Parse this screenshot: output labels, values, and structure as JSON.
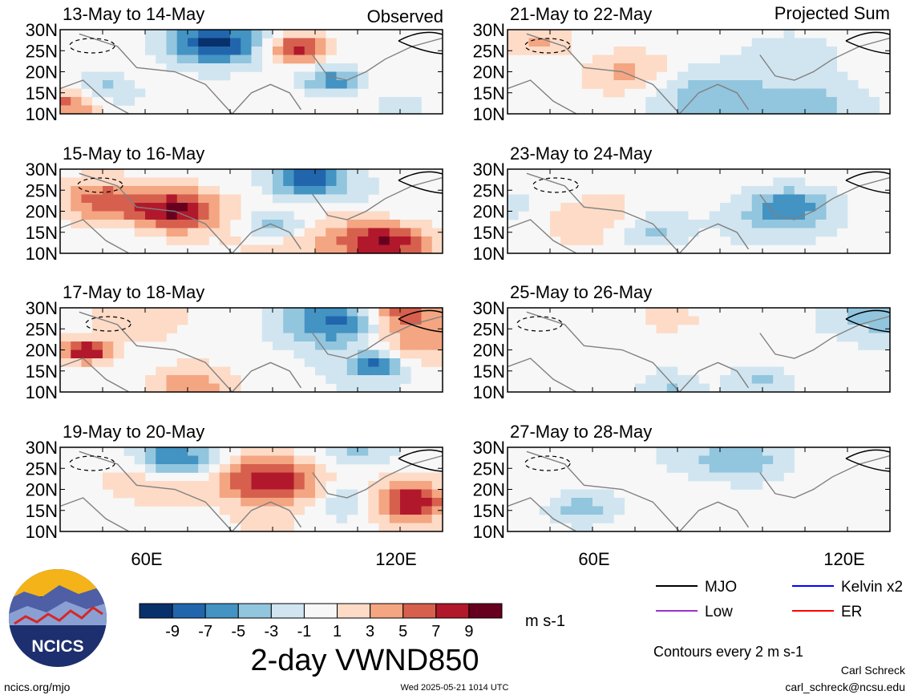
{
  "chart_data": {
    "type": "heatmap",
    "title": "2-day VWND850",
    "units": "m s-1",
    "lat_ticks": [
      "30N",
      "25N",
      "20N",
      "15N",
      "10N"
    ],
    "lon_ticks": [
      "60E",
      "120E"
    ],
    "lat_range": [
      10,
      30
    ],
    "lon_range": [
      40,
      130
    ],
    "column_labels": [
      "Observed",
      "Projected Sum"
    ],
    "colorbar": {
      "ticks": [
        "-9",
        "-7",
        "-5",
        "-3",
        "-1",
        "1",
        "3",
        "5",
        "7",
        "9"
      ],
      "levels": [
        -9,
        -7,
        -5,
        -3,
        -1,
        1,
        3,
        5,
        7,
        9
      ],
      "colors": [
        "#08306b",
        "#2166ac",
        "#4393c3",
        "#92c5de",
        "#d1e5f0",
        "#f7f7f7",
        "#fddbc7",
        "#f4a582",
        "#d6604d",
        "#b2182b",
        "#67001f"
      ]
    },
    "contour_note": "Contours every 2 m s-1",
    "legend": [
      {
        "label": "MJO",
        "color": "#000000"
      },
      {
        "label": "Kelvin x2",
        "color": "#0000ff"
      },
      {
        "label": "Low",
        "color": "#9933cc"
      },
      {
        "label": "ER",
        "color": "#ff0000"
      }
    ],
    "panels": [
      {
        "label": "13-May to 14-May"
      },
      {
        "label": "15-May to 16-May"
      },
      {
        "label": "17-May to 18-May"
      },
      {
        "label": "19-May to 20-May"
      },
      {
        "label": "21-May to 22-May"
      },
      {
        "label": "23-May to 24-May"
      },
      {
        "label": "25-May to 26-May"
      },
      {
        "label": "27-May to 28-May"
      }
    ]
  },
  "footer": {
    "left": "ncics.org/mjo",
    "center": "Wed 2025-05-21 1014 UTC",
    "author": "Carl Schreck",
    "email": "carl_schreck@ncsu.edu",
    "logo_text": "NCICS"
  }
}
